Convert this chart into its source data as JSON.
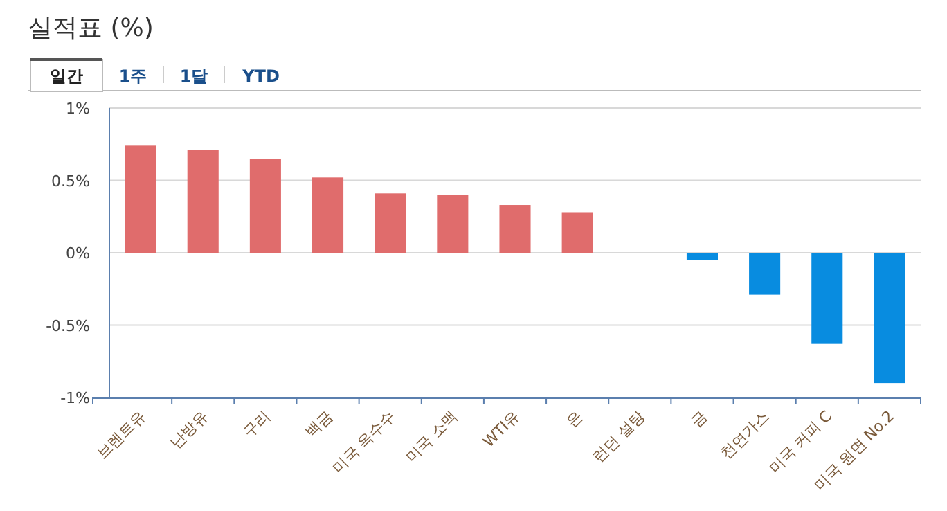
{
  "chart_data": {
    "type": "bar",
    "title": "실적표 (%)",
    "annotations": [
      "일간",
      "1주",
      "1달",
      "YTD"
    ],
    "categories": [
      "브렌트유",
      "난방유",
      "구리",
      "백금",
      "미국 옥수수",
      "미국 소맥",
      "WTI유",
      "은",
      "런던 설탕",
      "금",
      "천연가스",
      "미국 커피 C",
      "미국 원면 No.2"
    ],
    "values": [
      0.74,
      0.71,
      0.65,
      0.52,
      0.41,
      0.4,
      0.33,
      0.28,
      0,
      -0.05,
      -0.29,
      -0.63,
      -0.9
    ],
    "colors": [
      "#e06c6c",
      "#e06c6c",
      "#e06c6c",
      "#e06c6c",
      "#e06c6c",
      "#e06c6c",
      "#e06c6c",
      "#e06c6c",
      "#e06c6c",
      "#088ce0",
      "#088ce0",
      "#088ce0",
      "#088ce0"
    ],
    "ylim": [
      -1,
      1
    ],
    "yticks": [
      {
        "value": 1,
        "label": "1%"
      },
      {
        "value": 0.5,
        "label": "0.5%"
      },
      {
        "value": 0,
        "label": "0%"
      },
      {
        "value": -0.5,
        "label": "-0.5%"
      },
      {
        "value": -1,
        "label": "-1%"
      }
    ],
    "grid": "y"
  }
}
